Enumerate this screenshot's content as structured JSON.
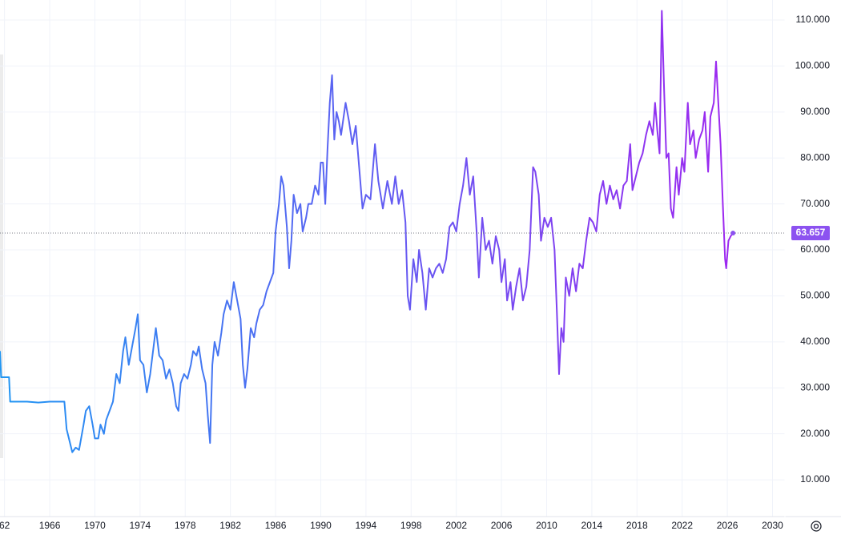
{
  "chart_data": {
    "type": "line",
    "x": [
      1961.6,
      1961.7,
      1962.4,
      1962.5,
      1964,
      1965,
      1966,
      1967.3,
      1967.5,
      1967.7,
      1968,
      1968.3,
      1968.6,
      1969,
      1969.2,
      1969.5,
      1969.8,
      1970,
      1970.3,
      1970.5,
      1970.8,
      1971,
      1971.3,
      1971.6,
      1971.9,
      1972.2,
      1972.5,
      1972.7,
      1973,
      1973.3,
      1973.6,
      1973.8,
      1974,
      1974.3,
      1974.6,
      1974.9,
      1975.2,
      1975.4,
      1975.7,
      1976,
      1976.3,
      1976.6,
      1976.9,
      1977.2,
      1977.4,
      1977.6,
      1977.9,
      1978.2,
      1978.5,
      1978.7,
      1979,
      1979.2,
      1979.5,
      1979.8,
      1980,
      1980.2,
      1980.4,
      1980.6,
      1980.9,
      1981.2,
      1981.4,
      1981.7,
      1982,
      1982.3,
      1982.6,
      1982.9,
      1983.1,
      1983.3,
      1983.5,
      1983.8,
      1984.1,
      1984.3,
      1984.6,
      1984.9,
      1985.2,
      1985.5,
      1985.8,
      1986,
      1986.3,
      1986.5,
      1986.7,
      1987,
      1987.2,
      1987.4,
      1987.6,
      1987.9,
      1988.2,
      1988.4,
      1988.7,
      1988.9,
      1989.2,
      1989.5,
      1989.8,
      1990,
      1990.2,
      1990.4,
      1990.6,
      1990.8,
      1991,
      1991.2,
      1991.4,
      1991.6,
      1991.8,
      1992.2,
      1992.5,
      1992.8,
      1993.1,
      1993.4,
      1993.7,
      1994,
      1994.4,
      1994.8,
      1995.1,
      1995.5,
      1995.9,
      1996.3,
      1996.6,
      1996.9,
      1997.2,
      1997.5,
      1997.7,
      1997.9,
      1998.2,
      1998.5,
      1998.7,
      1999,
      1999.3,
      1999.6,
      1999.9,
      2000.2,
      2000.5,
      2000.8,
      2001.1,
      2001.4,
      2001.7,
      2002,
      2002.3,
      2002.6,
      2002.9,
      2003.2,
      2003.5,
      2003.8,
      2004,
      2004.3,
      2004.6,
      2004.9,
      2005.2,
      2005.5,
      2005.8,
      2006,
      2006.3,
      2006.5,
      2006.8,
      2007,
      2007.3,
      2007.6,
      2007.9,
      2008.2,
      2008.5,
      2008.8,
      2009,
      2009.3,
      2009.5,
      2009.8,
      2010.1,
      2010.4,
      2010.7,
      2010.9,
      2011.1,
      2011.3,
      2011.5,
      2011.7,
      2012,
      2012.3,
      2012.6,
      2012.9,
      2013.2,
      2013.5,
      2013.8,
      2014.1,
      2014.4,
      2014.7,
      2015,
      2015.3,
      2015.6,
      2015.9,
      2016.2,
      2016.5,
      2016.8,
      2017.1,
      2017.4,
      2017.6,
      2017.9,
      2018.2,
      2018.5,
      2018.8,
      2019.1,
      2019.4,
      2019.6,
      2019.8,
      2020,
      2020.2,
      2020.4,
      2020.6,
      2020.8,
      2021,
      2021.2,
      2021.5,
      2021.7,
      2022,
      2022.2,
      2022.5,
      2022.7,
      2023,
      2023.2,
      2023.5,
      2023.8,
      2024,
      2024.3,
      2024.5,
      2024.8,
      2025,
      2025.2,
      2025.4,
      2025.6,
      2025.8,
      2025.9,
      2026.1,
      2026.3,
      2026.5
    ],
    "values": [
      38,
      32.3,
      32.3,
      27,
      27,
      26.8,
      27,
      27,
      21,
      19,
      16,
      17,
      16.5,
      22,
      25,
      26,
      22,
      19,
      19,
      22,
      20,
      23,
      25,
      27,
      33,
      31,
      38,
      41,
      35,
      39,
      43,
      46,
      36,
      35,
      29,
      33,
      39,
      43,
      37,
      36,
      32,
      34,
      31,
      26,
      25,
      31,
      33,
      32,
      35,
      38,
      37,
      39,
      34,
      31,
      24,
      18,
      35,
      40,
      37,
      42,
      46,
      49,
      47,
      53,
      49,
      45,
      35,
      30,
      34,
      43,
      41,
      44,
      47,
      48,
      51,
      53,
      55,
      64,
      70,
      76,
      74,
      65,
      56,
      62,
      72,
      68,
      70,
      64,
      67,
      70,
      70,
      74,
      72,
      79,
      79,
      70,
      82,
      92,
      98,
      84,
      90,
      88,
      85,
      92,
      88,
      83,
      87,
      78,
      69,
      72,
      71,
      83,
      75,
      69,
      75,
      70,
      76,
      70,
      73,
      66,
      50,
      47,
      58,
      53,
      60,
      55,
      47,
      56,
      54,
      56,
      57,
      55,
      58,
      65,
      66,
      64,
      70,
      74,
      80,
      72,
      76,
      64,
      54,
      67,
      60,
      62,
      57,
      63,
      60,
      53,
      58,
      49,
      53,
      47,
      52,
      56,
      49,
      52,
      60,
      78,
      77,
      72,
      62,
      67,
      65,
      67,
      60,
      47,
      33,
      43,
      40,
      54,
      50,
      56,
      51,
      57,
      56,
      62,
      67,
      66,
      64,
      72,
      75,
      70,
      74,
      71,
      73,
      69,
      74,
      75,
      83,
      73,
      76,
      79,
      81,
      85,
      88,
      85,
      92,
      86,
      81,
      112,
      95,
      80,
      81,
      69,
      67,
      78,
      72,
      80,
      77,
      92,
      83,
      86,
      80,
      84,
      86,
      90,
      77,
      89,
      92,
      101,
      92,
      83,
      70,
      58,
      56,
      62,
      63,
      63.657
    ],
    "colors": [
      "#2196f3",
      "#a61ff0"
    ],
    "label_color": "#8c52f0",
    "xlim": [
      1961.6,
      2031.1
    ],
    "ylim": [
      2.0,
      114.36
    ],
    "xticks": [
      {
        "value": 1962,
        "label": "62"
      },
      1966,
      1970,
      1974,
      1978,
      1982,
      1986,
      1990,
      1994,
      1998,
      2002,
      2006,
      2010,
      2014,
      2018,
      2022,
      2026,
      2030
    ],
    "yticks": [
      {
        "value": 10,
        "label": "10.000"
      },
      {
        "value": 20,
        "label": "20.000"
      },
      {
        "value": 30,
        "label": "30.000"
      },
      {
        "value": 40,
        "label": "40.000"
      },
      {
        "value": 50,
        "label": "50.000"
      },
      {
        "value": 60,
        "label": "60.000"
      },
      {
        "value": 70,
        "label": "70.000"
      },
      {
        "value": 80,
        "label": "80.000"
      },
      {
        "value": 90,
        "label": "90.000"
      },
      {
        "value": 100,
        "label": "100.000"
      },
      {
        "value": 110,
        "label": "110.000"
      }
    ],
    "grid": true
  }
}
